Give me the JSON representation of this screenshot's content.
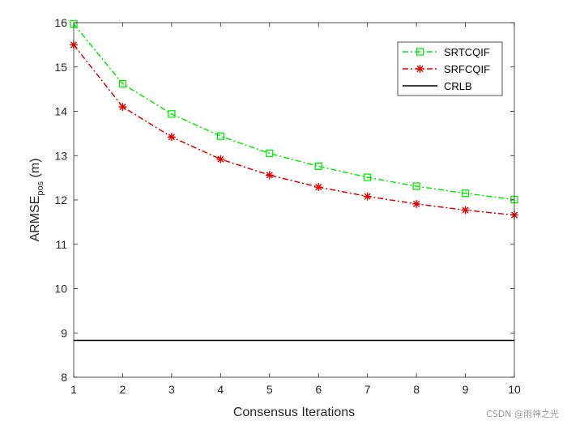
{
  "chart_data": {
    "type": "line",
    "title": "",
    "xlabel": "Consensus Iterations",
    "ylabel_main": "ARMSE",
    "ylabel_sub": "pos",
    "ylabel_unit": " (m)",
    "x": [
      1,
      2,
      3,
      4,
      5,
      6,
      7,
      8,
      9,
      10
    ],
    "xlim": [
      1,
      10
    ],
    "ylim": [
      8,
      16
    ],
    "xticks": [
      1,
      2,
      3,
      4,
      5,
      6,
      7,
      8,
      9,
      10
    ],
    "yticks": [
      8,
      9,
      10,
      11,
      12,
      13,
      14,
      15,
      16
    ],
    "grid": false,
    "legend_position": "top-right",
    "series": [
      {
        "name": "SRTCQIF",
        "color": "#00ee00",
        "marker": "square",
        "line": "dashdot",
        "values": [
          15.97,
          14.62,
          13.94,
          13.44,
          13.05,
          12.76,
          12.51,
          12.31,
          12.15,
          12.01
        ]
      },
      {
        "name": "SRFCQIF",
        "color": "#e00000",
        "marker": "asterisk",
        "line": "dashdot",
        "values": [
          15.5,
          14.1,
          13.42,
          12.92,
          12.56,
          12.29,
          12.08,
          11.91,
          11.77,
          11.66
        ]
      },
      {
        "name": "CRLB",
        "color": "#000000",
        "marker": "none",
        "line": "solid",
        "values": [
          8.83,
          8.83,
          8.83,
          8.83,
          8.83,
          8.83,
          8.83,
          8.83,
          8.83,
          8.83
        ]
      }
    ]
  },
  "watermark": "CSDN @雨神之光"
}
